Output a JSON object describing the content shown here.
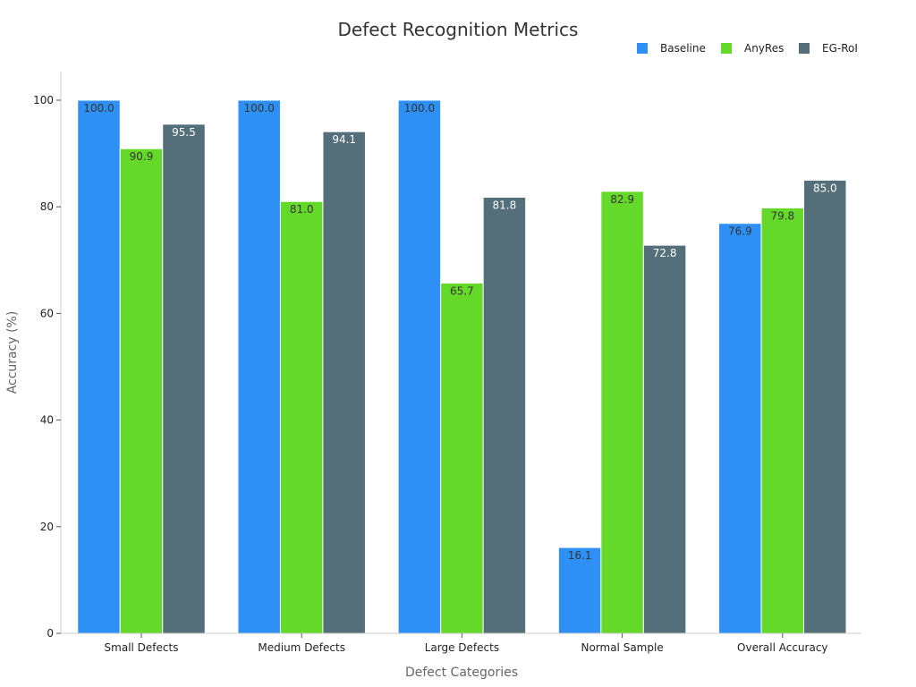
{
  "chart_data": {
    "type": "bar",
    "title": "Defect Recognition Metrics",
    "xlabel": "Defect Categories",
    "ylabel": "Accuracy (%)",
    "ylim": [
      0,
      105
    ],
    "yticks": [
      0,
      20,
      40,
      60,
      80,
      100
    ],
    "grid": false,
    "legend_position": "top-right",
    "categories": [
      "Small Defects",
      "Medium Defects",
      "Large Defects",
      "Normal Sample",
      "Overall Accuracy"
    ],
    "series": [
      {
        "name": "Baseline",
        "color": "#2e90f5",
        "label_color": "#333333",
        "values": [
          100.0,
          100.0,
          100.0,
          16.1,
          76.9
        ]
      },
      {
        "name": "AnyRes",
        "color": "#65d92a",
        "label_color": "#333333",
        "values": [
          90.9,
          81.0,
          65.7,
          82.9,
          79.8
        ]
      },
      {
        "name": "EG-RoI",
        "color": "#546e7a",
        "label_color": "#ffffff",
        "values": [
          95.5,
          94.1,
          81.8,
          72.8,
          85.0
        ]
      }
    ]
  }
}
